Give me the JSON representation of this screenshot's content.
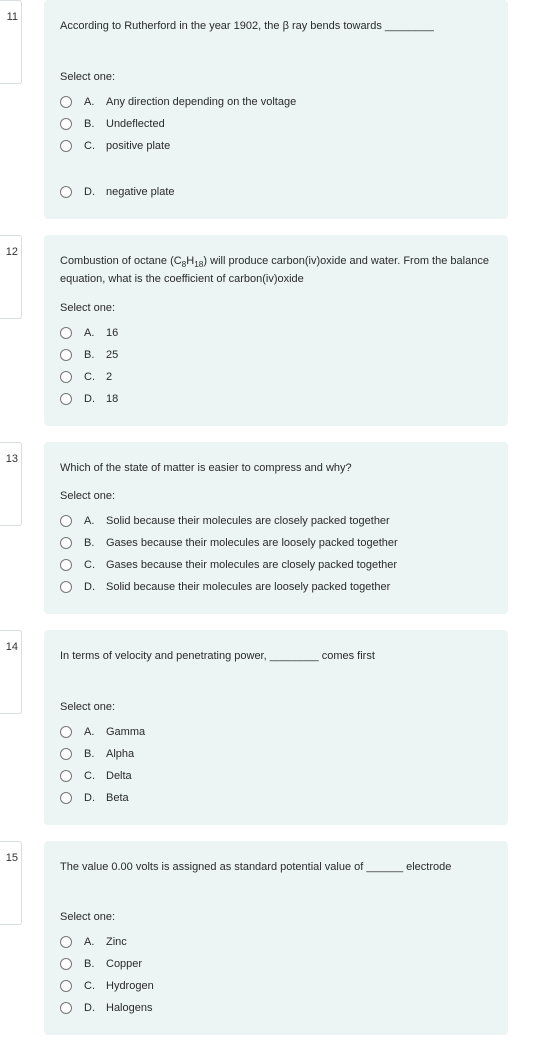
{
  "quiz": {
    "select_one_label": "Select one:",
    "questions": [
      {
        "number": "11",
        "prompt_html": "According to Rutherford in the year 1902, the β ray bends towards ________",
        "large_gap_after_prompt": true,
        "options": [
          {
            "letter": "A.",
            "text": "Any direction depending on the voltage",
            "gap_below": false
          },
          {
            "letter": "B.",
            "text": "Undeflected",
            "gap_below": false
          },
          {
            "letter": "C.",
            "text": "positive plate",
            "gap_below": true
          },
          {
            "letter": "D.",
            "text": "negative plate",
            "gap_below": false
          }
        ]
      },
      {
        "number": "12",
        "prompt_html": "Combustion of octane (C<sub>8</sub>H<sub>18</sub>) will produce carbon(iv)oxide and water. From the balance equation, what is the coefficient of carbon(iv)oxide",
        "large_gap_after_prompt": false,
        "options": [
          {
            "letter": "A.",
            "text": "16",
            "gap_below": false
          },
          {
            "letter": "B.",
            "text": "25",
            "gap_below": false
          },
          {
            "letter": "C.",
            "text": "2",
            "gap_below": false
          },
          {
            "letter": "D.",
            "text": "18",
            "gap_below": false
          }
        ]
      },
      {
        "number": "13",
        "prompt_html": "Which of the state of matter is easier to compress and why?",
        "large_gap_after_prompt": false,
        "options": [
          {
            "letter": "A.",
            "text": "Solid because their molecules are closely packed together",
            "gap_below": false
          },
          {
            "letter": "B.",
            "text": "Gases because their molecules are loosely packed together",
            "gap_below": false
          },
          {
            "letter": "C.",
            "text": "Gases because their molecules are closely packed together",
            "gap_below": false
          },
          {
            "letter": "D.",
            "text": "Solid because their molecules are loosely packed together",
            "gap_below": false
          }
        ]
      },
      {
        "number": "14",
        "prompt_html": "In terms of velocity and penetrating power, ________ comes first",
        "large_gap_after_prompt": true,
        "options": [
          {
            "letter": "A.",
            "text": "Gamma",
            "gap_below": false
          },
          {
            "letter": "B.",
            "text": "Alpha",
            "gap_below": false
          },
          {
            "letter": "C.",
            "text": "Delta",
            "gap_below": false
          },
          {
            "letter": "D.",
            "text": "Beta",
            "gap_below": false
          }
        ]
      },
      {
        "number": "15",
        "prompt_html": "The value 0.00 volts is assigned as standard potential value of ______ electrode",
        "large_gap_after_prompt": true,
        "options": [
          {
            "letter": "A.",
            "text": "Zinc",
            "gap_below": false
          },
          {
            "letter": "B.",
            "text": "Copper",
            "gap_below": false
          },
          {
            "letter": "C.",
            "text": "Hydrogen",
            "gap_below": false
          },
          {
            "letter": "D.",
            "text": "Halogens",
            "gap_below": false
          }
        ]
      }
    ]
  }
}
